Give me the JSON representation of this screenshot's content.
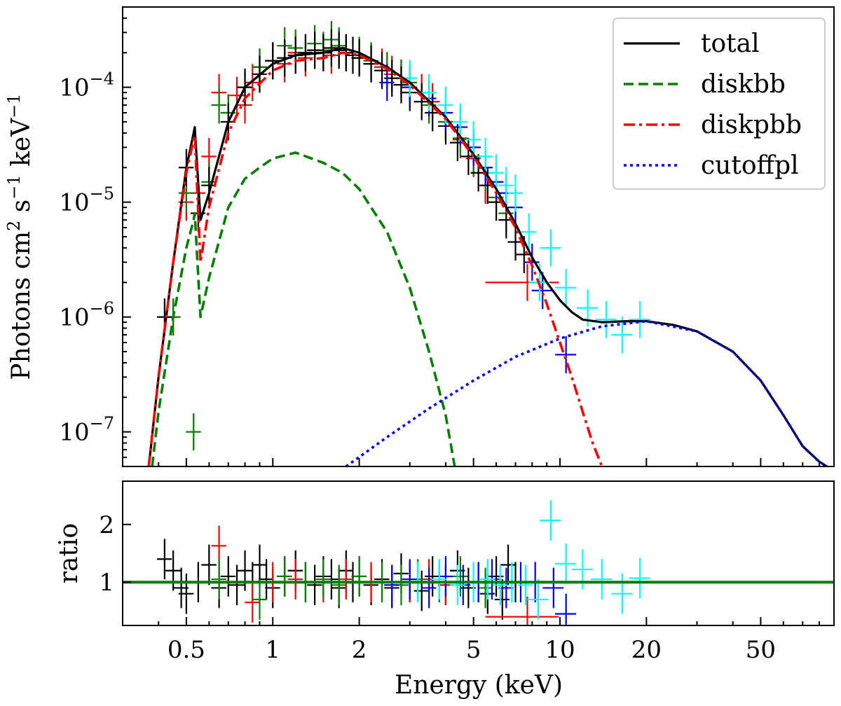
{
  "chart_data": [
    {
      "type": "line",
      "panel": "spectrum",
      "xlabel": "Energy (keV)",
      "ylabel": "Photons cm^2 s^-1 keV^-1",
      "xscale": "log",
      "yscale": "log",
      "xlim": [
        0.3,
        90
      ],
      "ylim": [
        5e-08,
        0.0005
      ],
      "y_ticks": [
        {
          "value": 1e-07,
          "mant": "10",
          "exp": "−7"
        },
        {
          "value": 1e-06,
          "mant": "10",
          "exp": "−6"
        },
        {
          "value": 1e-05,
          "mant": "10",
          "exp": "−5"
        },
        {
          "value": 0.0001,
          "mant": "10",
          "exp": "−4"
        }
      ],
      "legend": {
        "placement": "top-right",
        "entries": [
          "total",
          "diskbb",
          "diskpbb",
          "cutoffpl"
        ]
      },
      "series": [
        {
          "name": "total",
          "color": "#000000",
          "style": "solid",
          "x": [
            0.37,
            0.4,
            0.45,
            0.5,
            0.53,
            0.535,
            0.56,
            0.6,
            0.7,
            0.8,
            1.0,
            1.2,
            1.5,
            1.75,
            2.0,
            2.5,
            3.0,
            4.0,
            5.0,
            6.0,
            7.0,
            8.0,
            9.0,
            10.0,
            11.0,
            12.0,
            14.0,
            17.0,
            20.0,
            25.0,
            30.0,
            40.0,
            50.0,
            60.0,
            70.0,
            80.0,
            85.0
          ],
          "y": [
            5e-08,
            3e-07,
            3e-06,
            2e-05,
            4e-05,
            4.5e-05,
            7e-06,
            1.2e-05,
            5e-05,
            0.0001,
            0.00016,
            0.00019,
            0.0002,
            0.00022,
            0.0002,
            0.00015,
            0.00011,
            5.5e-05,
            2.6e-05,
            1.3e-05,
            6.5e-06,
            3.3e-06,
            2e-06,
            1.4e-06,
            1.1e-06,
            9.5e-07,
            9e-07,
            9.2e-07,
            9.2e-07,
            8.5e-07,
            7.5e-07,
            5e-07,
            2.8e-07,
            1.4e-07,
            7.5e-08,
            5.5e-08,
            5e-08
          ]
        },
        {
          "name": "diskbb",
          "color": "#007f00",
          "style": "dashed",
          "x": [
            0.38,
            0.4,
            0.45,
            0.5,
            0.53,
            0.535,
            0.56,
            0.6,
            0.7,
            0.8,
            0.9,
            1.0,
            1.2,
            1.5,
            1.75,
            2.0,
            2.5,
            3.0,
            3.5,
            4.0,
            4.3
          ],
          "y": [
            5e-08,
            1.5e-07,
            1e-06,
            4e-06,
            7e-06,
            8e-06,
            1e-06,
            2.2e-06,
            9e-06,
            1.6e-05,
            2e-05,
            2.4e-05,
            2.7e-05,
            2.2e-05,
            1.8e-05,
            1.3e-05,
            5.5e-06,
            1.8e-06,
            5e-07,
            1.4e-07,
            5e-08
          ]
        },
        {
          "name": "diskpbb",
          "color": "#ff0000",
          "style": "dashdot",
          "x": [
            0.37,
            0.4,
            0.45,
            0.5,
            0.53,
            0.535,
            0.56,
            0.6,
            0.7,
            0.8,
            1.0,
            1.2,
            1.5,
            1.75,
            2.0,
            2.5,
            3.0,
            4.0,
            5.0,
            6.0,
            7.0,
            8.0,
            9.0,
            10.0,
            11.0,
            12.0,
            13.0,
            14.0
          ],
          "y": [
            5e-08,
            3e-07,
            3e-06,
            1.8e-05,
            3.5e-05,
            3.8e-05,
            3e-06,
            9e-06,
            4e-05,
            8e-05,
            0.00014,
            0.00017,
            0.00018,
            0.0002,
            0.00019,
            0.000145,
            0.000105,
            5.3e-05,
            2.5e-05,
            1.2e-05,
            6e-06,
            2.8e-06,
            1.3e-06,
            6e-07,
            3e-07,
            1.5e-07,
            8e-08,
            5e-08
          ]
        },
        {
          "name": "cutoffpl",
          "color": "#0000ff",
          "style": "dotted",
          "x": [
            1.8,
            2.5,
            3.5,
            5.0,
            7.0,
            10.0,
            14.0,
            20.0,
            30.0,
            40.0,
            50.0,
            60.0,
            70.0,
            80.0,
            85.0
          ],
          "y": [
            5e-08,
            9e-08,
            1.6e-07,
            2.8e-07,
            4.5e-07,
            6.5e-07,
            8.3e-07,
            9.2e-07,
            7.5e-07,
            5e-07,
            2.8e-07,
            1.4e-07,
            7.5e-08,
            5.5e-08,
            5e-08
          ]
        }
      ],
      "data_points": [
        {
          "name": "red",
          "color": "#ff0000",
          "x": [
            0.45,
            0.5,
            0.55,
            0.6,
            0.65,
            0.7,
            0.75,
            0.8,
            0.85,
            0.9,
            1.0,
            1.1,
            1.2,
            1.3,
            1.4,
            1.5,
            1.6,
            1.7,
            1.8,
            2.0,
            2.2,
            2.4,
            2.6,
            2.8,
            3.0,
            3.3,
            3.6,
            4.0,
            4.5,
            5.0,
            5.5,
            7.7
          ],
          "y": [
            1e-06,
            1e-05,
            1.2e-05,
            2.5e-05,
            9e-05,
            6e-05,
            8.5e-05,
            7e-05,
            0.00011,
            0.00015,
            0.00017,
            0.00016,
            0.0002,
            0.00018,
            0.00021,
            0.0002,
            0.00019,
            0.00022,
            0.0002,
            0.00018,
            0.00016,
            0.00015,
            0.00013,
            0.00012,
            0.0001,
            9e-05,
            7.5e-05,
            5e-05,
            3.5e-05,
            2.4e-05,
            1.4e-05,
            2e-06
          ]
        },
        {
          "name": "green",
          "color": "#007f00",
          "x": [
            0.45,
            0.5,
            0.53,
            0.6,
            0.65,
            0.7,
            0.8,
            0.9,
            1.0,
            1.1,
            1.2,
            1.3,
            1.4,
            1.5,
            1.6,
            1.7,
            1.8,
            2.0,
            2.2,
            2.5,
            2.8,
            3.0,
            3.5,
            4.0,
            4.5,
            5.0,
            5.5,
            6.0,
            6.5
          ],
          "y": [
            1e-06,
            1.2e-05,
            1e-07,
            1.5e-05,
            7e-05,
            6e-05,
            0.0001,
            0.00015,
            0.00017,
            0.00023,
            0.00022,
            0.0002,
            0.00024,
            0.00021,
            0.00026,
            0.00023,
            0.0002,
            0.00019,
            0.00017,
            0.00014,
            0.00012,
            0.00011,
            7e-05,
            5e-05,
            3.6e-05,
            2.5e-05,
            1.8e-05,
            1.1e-05,
            8e-06
          ]
        },
        {
          "name": "black",
          "color": "#000000",
          "x": [
            0.42,
            0.5,
            0.55,
            0.6,
            0.7,
            0.8,
            0.9,
            1.0,
            1.1,
            1.2,
            1.3,
            1.4,
            1.5,
            1.6,
            1.7,
            1.8,
            1.9,
            2.0,
            2.2,
            2.4,
            2.6,
            2.8,
            3.0,
            3.3,
            3.6,
            4.0,
            4.4,
            4.8,
            5.2,
            5.6,
            6.0,
            6.5,
            7.0,
            7.5
          ],
          "y": [
            1e-06,
            2e-05,
            8e-06,
            1.4e-05,
            5e-05,
            0.0001,
            0.00013,
            0.00017,
            0.00018,
            0.00019,
            0.0002,
            0.00021,
            0.0002,
            0.00022,
            0.00021,
            0.0002,
            0.00019,
            0.00018,
            0.00016,
            0.00014,
            0.00012,
            0.000105,
            9e-05,
            7.5e-05,
            6e-05,
            4.6e-05,
            3.3e-05,
            2.5e-05,
            1.8e-05,
            1.4e-05,
            1e-05,
            7e-06,
            4.5e-06,
            3.5e-06
          ]
        },
        {
          "name": "blue",
          "color": "#0000ff",
          "x": [
            2.5,
            3.0,
            3.5,
            4.0,
            4.5,
            5.0,
            5.5,
            6.0,
            6.5,
            7.0,
            8.0,
            8.7,
            10.5
          ],
          "y": [
            0.00011,
            0.0001,
            8e-05,
            6e-05,
            4.5e-05,
            3e-05,
            2e-05,
            1.5e-05,
            1.2e-05,
            9e-06,
            3e-06,
            1.7e-06,
            4.7e-07
          ]
        },
        {
          "name": "cyan",
          "color": "#00ffff",
          "x": [
            3.0,
            3.5,
            4.0,
            4.5,
            5.0,
            5.5,
            6.0,
            6.5,
            7.0,
            7.8,
            8.5,
            9.3,
            10.5,
            12.5,
            14.5,
            16.5,
            19.0
          ],
          "y": [
            0.00012,
            9e-05,
            7e-05,
            5e-05,
            3.5e-05,
            2.5e-05,
            1.8e-05,
            1.4e-05,
            1.2e-05,
            5.5e-06,
            2e-06,
            4e-06,
            1.8e-06,
            1.2e-06,
            9.5e-07,
            7e-07,
            9.5e-07
          ]
        }
      ]
    },
    {
      "type": "scatter",
      "panel": "ratio",
      "xlabel": "Energy (keV)",
      "ylabel": "ratio",
      "xscale": "log",
      "xlim": [
        0.3,
        90
      ],
      "ylim": [
        0.25,
        2.75
      ],
      "y_ticks": [
        1,
        2
      ],
      "x_ticks": [
        {
          "value": 0.5,
          "label": "0.5"
        },
        {
          "value": 1,
          "label": "1"
        },
        {
          "value": 2,
          "label": "2"
        },
        {
          "value": 5,
          "label": "5"
        },
        {
          "value": 10,
          "label": "10"
        },
        {
          "value": 20,
          "label": "20"
        },
        {
          "value": 50,
          "label": "50"
        }
      ],
      "reference_line": {
        "y": 1,
        "color": "#007f00"
      },
      "data_points": [
        {
          "name": "black",
          "color": "#000000",
          "x": [
            0.42,
            0.45,
            0.48,
            0.5,
            0.55,
            0.6,
            0.65,
            0.7,
            0.75,
            0.8,
            0.85,
            0.9,
            0.95,
            1.0,
            1.1,
            1.2,
            1.3,
            1.4,
            1.5,
            1.6,
            1.7,
            1.8,
            1.9,
            2.0,
            2.2,
            2.4,
            2.6,
            2.8,
            3.0,
            3.3,
            3.6,
            4.0,
            4.4,
            4.8,
            5.2,
            5.6,
            6.0,
            6.3,
            6.6,
            7.0
          ],
          "y": [
            1.4,
            1.2,
            0.9,
            0.8,
            1.0,
            1.3,
            0.9,
            1.1,
            0.95,
            1.2,
            1.0,
            1.3,
            1.05,
            0.9,
            1.1,
            1.2,
            1.0,
            0.95,
            1.1,
            1.05,
            0.9,
            1.2,
            1.0,
            1.1,
            0.95,
            1.05,
            0.9,
            1.15,
            1.0,
            0.85,
            1.1,
            0.95,
            1.2,
            0.9,
            1.0,
            0.8,
            1.1,
            0.7,
            1.3,
            1.0
          ]
        },
        {
          "name": "red",
          "color": "#ff0000",
          "x": [
            0.65,
            0.85,
            1.0,
            1.2,
            1.5,
            1.8,
            2.2,
            2.6,
            3.0,
            3.5,
            4.0,
            7.7
          ],
          "y": [
            1.63,
            0.65,
            1.0,
            1.05,
            1.0,
            1.05,
            1.0,
            0.95,
            1.0,
            1.05,
            0.95,
            0.4
          ]
        },
        {
          "name": "green",
          "color": "#007f00",
          "x": [
            0.65,
            0.9,
            1.1,
            1.3,
            1.5,
            1.7,
            2.0,
            2.4,
            2.8,
            3.2,
            3.8,
            4.5,
            5.5
          ],
          "y": [
            1.05,
            0.7,
            1.1,
            1.0,
            1.05,
            0.95,
            1.1,
            1.0,
            0.95,
            1.05,
            1.0,
            1.1,
            0.9
          ]
        },
        {
          "name": "blue",
          "color": "#0000ff",
          "x": [
            2.6,
            3.0,
            3.5,
            4.0,
            4.6,
            5.2,
            5.8,
            6.5,
            7.3,
            8.2,
            9.5,
            10.5
          ],
          "y": [
            0.95,
            1.05,
            0.9,
            1.1,
            0.95,
            1.0,
            1.05,
            0.9,
            1.0,
            1.0,
            0.9,
            0.45
          ]
        },
        {
          "name": "cyan",
          "color": "#00ffff",
          "x": [
            3.2,
            3.8,
            4.4,
            5.0,
            5.6,
            6.2,
            6.8,
            7.6,
            8.4,
            9.3,
            10.5,
            12.0,
            14.0,
            16.5,
            19.0
          ],
          "y": [
            1.0,
            1.05,
            0.95,
            1.0,
            1.05,
            0.95,
            1.0,
            0.95,
            0.7,
            2.07,
            1.32,
            1.22,
            1.05,
            0.8,
            1.07
          ]
        }
      ]
    }
  ]
}
